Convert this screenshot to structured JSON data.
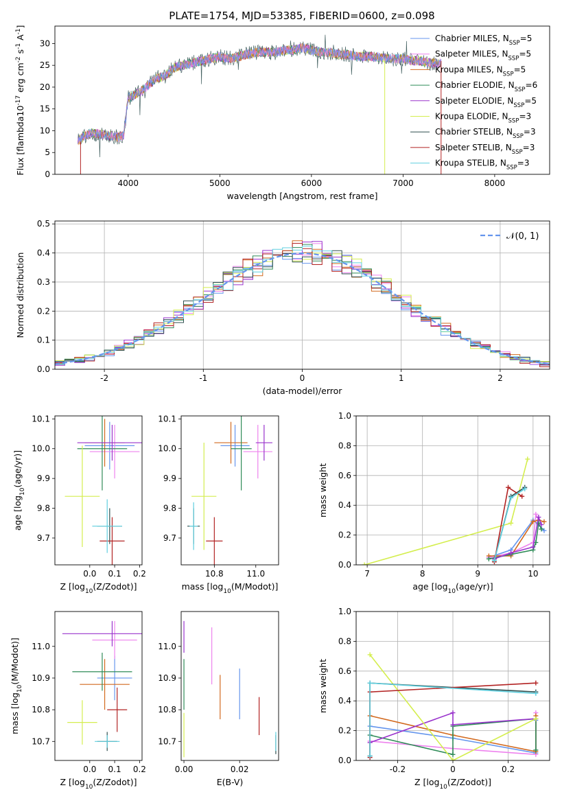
{
  "figure": {
    "title": "PLATE=1754, MJD=53385, FIBERID=0600, z=0.098"
  },
  "models": [
    {
      "name": "Chabrier MILES",
      "nssp": "5",
      "color": "#6495ed"
    },
    {
      "name": "Salpeter MILES",
      "nssp": "5",
      "color": "#ee82ee"
    },
    {
      "name": "Kroupa MILES",
      "nssp": "5",
      "color": "#d2691e"
    },
    {
      "name": "Chabrier ELODIE",
      "nssp": "6",
      "color": "#2e8b57"
    },
    {
      "name": "Salpeter ELODIE",
      "nssp": "5",
      "color": "#9932cc"
    },
    {
      "name": "Kroupa ELODIE",
      "nssp": "3",
      "color": "#d4ee4e"
    },
    {
      "name": "Chabrier STELIB",
      "nssp": "3",
      "color": "#2f4f4f"
    },
    {
      "name": "Salpeter STELIB",
      "nssp": "3",
      "color": "#b22222"
    },
    {
      "name": "Kroupa STELIB",
      "nssp": "3",
      "color": "#5fcfdf"
    }
  ],
  "chart_data": [
    {
      "id": "spectrum",
      "type": "line",
      "xlabel": "wavelength [Angstrom, rest frame]",
      "ylabel": "Flux [f$_\\lambda$10$^{-17}$ erg cm$^{-2}$ s$^{-1}$ A$^{-1}$]",
      "xlim": [
        3200,
        8600
      ],
      "ylim": [
        0,
        34
      ],
      "xticks": [
        4000,
        5000,
        6000,
        7000,
        8000
      ],
      "yticks": [
        0,
        5,
        10,
        15,
        20,
        25,
        30
      ],
      "grid": false,
      "legend": "right",
      "continuum": {
        "x": [
          3450,
          3500,
          3600,
          3700,
          3800,
          3900,
          3950,
          4000,
          4100,
          4200,
          4300,
          4400,
          4500,
          4600,
          4700,
          4800,
          4900,
          5000,
          5100,
          5200,
          5300,
          5400,
          5500,
          5600,
          5700,
          5800,
          5900,
          6000,
          6100,
          6200,
          6300,
          6400,
          6500,
          6600,
          6700,
          6800,
          6900,
          7000,
          7100,
          7200,
          7300,
          7400,
          7420
        ],
        "y": [
          7.5,
          8.5,
          9.5,
          9.2,
          8.8,
          8.5,
          9.0,
          17.5,
          18.5,
          20.0,
          22.0,
          22.5,
          24.5,
          25.0,
          25.5,
          26.0,
          26.5,
          27.0,
          26.5,
          27.0,
          27.5,
          28.0,
          28.0,
          28.0,
          28.5,
          28.5,
          29.0,
          28.5,
          28.0,
          28.0,
          27.5,
          27.5,
          27.0,
          27.0,
          27.0,
          26.5,
          26.5,
          26.5,
          26.0,
          26.0,
          25.5,
          25.5,
          25.5
        ]
      }
    },
    {
      "id": "residuals",
      "type": "line",
      "xlabel": "(data-model)/error",
      "ylabel": "Normed distribution",
      "xlim": [
        -2.5,
        2.5
      ],
      "ylim": [
        0,
        0.51
      ],
      "xticks": [
        -2,
        -1,
        0,
        1,
        2
      ],
      "yticks": [
        0.0,
        0.1,
        0.2,
        0.3,
        0.4,
        0.5
      ],
      "grid": true,
      "legend": "top-right",
      "legend_label": "$\\mathcal{N}(0, 1)$"
    },
    {
      "id": "age-vs-z",
      "type": "scatter",
      "xlabel": "Z [log$_{10}$($Z/Z_\\odot$)]",
      "ylabel": "age  [log$_{10}$($age/yr$)]",
      "xlim": [
        -0.14,
        0.21
      ],
      "ylim": [
        9.61,
        10.11
      ],
      "xticks": [
        0.0,
        0.1,
        0.2
      ],
      "yticks": [
        9.7,
        9.8,
        9.9,
        10.0,
        10.1
      ],
      "points": [
        {
          "m": 0,
          "x": 0.08,
          "y": 10.01,
          "xerr": 0.1,
          "yerr": 0.08
        },
        {
          "m": 1,
          "x": 0.1,
          "y": 9.99,
          "xerr": 0.1,
          "yerr": 0.09
        },
        {
          "m": 2,
          "x": 0.06,
          "y": 10.02,
          "xerr": 0.08,
          "yerr": 0.08
        },
        {
          "m": 3,
          "x": 0.05,
          "y": 10.0,
          "xerr": 0.1,
          "yerr": 0.14
        },
        {
          "m": 4,
          "x": 0.09,
          "y": 10.02,
          "xerr": 0.14,
          "yerr": 0.06
        },
        {
          "m": 5,
          "x": -0.03,
          "y": 9.84,
          "xerr": 0.07,
          "yerr": 0.17
        },
        {
          "m": 6,
          "x": 0.08,
          "y": 9.74,
          "xerr": 0.05,
          "yerr": 0.06
        },
        {
          "m": 7,
          "x": 0.09,
          "y": 9.69,
          "xerr": 0.05,
          "yerr": 0.08
        },
        {
          "m": 8,
          "x": 0.07,
          "y": 9.74,
          "xerr": 0.06,
          "yerr": 0.09
        }
      ]
    },
    {
      "id": "age-vs-mass",
      "type": "scatter",
      "xlabel": "mass [log$_{10}$($M/M_\\odot$)]",
      "ylabel": "",
      "xlim": [
        10.64,
        11.11
      ],
      "ylim": [
        9.61,
        10.11
      ],
      "xticks": [
        10.8,
        11.0
      ],
      "yticks": [
        9.7,
        9.8,
        9.9,
        10.0,
        10.1
      ],
      "points": [
        {
          "m": 0,
          "x": 10.9,
          "y": 10.01,
          "xerr": 0.07,
          "yerr": 0.07
        },
        {
          "m": 1,
          "x": 11.01,
          "y": 9.99,
          "xerr": 0.07,
          "yerr": 0.09
        },
        {
          "m": 2,
          "x": 10.88,
          "y": 10.02,
          "xerr": 0.08,
          "yerr": 0.07
        },
        {
          "m": 3,
          "x": 10.93,
          "y": 10.0,
          "xerr": 0.05,
          "yerr": 0.14
        },
        {
          "m": 4,
          "x": 11.04,
          "y": 10.02,
          "xerr": 0.04,
          "yerr": 0.06
        },
        {
          "m": 5,
          "x": 10.75,
          "y": 9.84,
          "xerr": 0.06,
          "yerr": 0.18
        },
        {
          "m": 6,
          "x": 10.7,
          "y": 9.74,
          "xerr": 0.03,
          "yerr": 0.06
        },
        {
          "m": 7,
          "x": 10.8,
          "y": 9.69,
          "xerr": 0.04,
          "yerr": 0.08
        },
        {
          "m": 8,
          "x": 10.7,
          "y": 9.74,
          "xerr": 0.02,
          "yerr": 0.08
        }
      ]
    },
    {
      "id": "mass-weight-vs-age",
      "type": "line",
      "xlabel": "age  [log$_{10}$($age/yr$)]",
      "ylabel": "mass weight",
      "xlim": [
        6.8,
        10.3
      ],
      "ylim": [
        0,
        1.0
      ],
      "xticks": [
        7,
        8,
        9,
        10
      ],
      "yticks": [
        0.0,
        0.2,
        0.4,
        0.6,
        0.8,
        1.0
      ],
      "grid": true,
      "series": [
        {
          "m": 0,
          "x": [
            9.2,
            9.6,
            10.0,
            10.1,
            10.2
          ],
          "y": [
            0.05,
            0.1,
            0.3,
            0.27,
            0.23
          ]
        },
        {
          "m": 1,
          "x": [
            9.2,
            9.6,
            10.0,
            10.05,
            10.1
          ],
          "y": [
            0.05,
            0.08,
            0.15,
            0.34,
            0.3
          ]
        },
        {
          "m": 2,
          "x": [
            9.2,
            9.6,
            10.0,
            10.1,
            10.2
          ],
          "y": [
            0.06,
            0.06,
            0.29,
            0.3,
            0.29
          ]
        },
        {
          "m": 3,
          "x": [
            9.2,
            9.6,
            10.0,
            10.05,
            10.1,
            10.15
          ],
          "y": [
            0.04,
            0.07,
            0.1,
            0.15,
            0.28,
            0.24
          ]
        },
        {
          "m": 4,
          "x": [
            9.3,
            9.6,
            10.0,
            10.1,
            10.15
          ],
          "y": [
            0.04,
            0.08,
            0.12,
            0.32,
            0.27
          ]
        },
        {
          "m": 5,
          "x": [
            6.95,
            9.6,
            9.9
          ],
          "y": [
            0.0,
            0.28,
            0.71
          ]
        },
        {
          "m": 6,
          "x": [
            9.3,
            9.6,
            9.85
          ],
          "y": [
            0.03,
            0.46,
            0.52
          ]
        },
        {
          "m": 7,
          "x": [
            9.3,
            9.55,
            9.8
          ],
          "y": [
            0.02,
            0.52,
            0.46
          ]
        },
        {
          "m": 8,
          "x": [
            9.3,
            9.6,
            9.85
          ],
          "y": [
            0.03,
            0.45,
            0.51
          ]
        }
      ]
    },
    {
      "id": "mass-vs-z",
      "type": "scatter",
      "xlabel": "Z [log$_{10}$($Z/Z_\\odot$)]",
      "ylabel": "mass [log$_{10}$($M/M_\\odot$)]",
      "xlim": [
        -0.14,
        0.21
      ],
      "ylim": [
        10.64,
        11.11
      ],
      "xticks": [
        0.0,
        0.1,
        0.2
      ],
      "yticks": [
        10.7,
        10.8,
        10.9,
        11.0
      ],
      "points": [
        {
          "m": 0,
          "x": 0.1,
          "y": 10.9,
          "xerr": 0.07,
          "yerr": 0.07
        },
        {
          "m": 1,
          "x": 0.1,
          "y": 11.02,
          "xerr": 0.09,
          "yerr": 0.06
        },
        {
          "m": 2,
          "x": 0.06,
          "y": 10.88,
          "xerr": 0.1,
          "yerr": 0.08
        },
        {
          "m": 3,
          "x": 0.05,
          "y": 10.92,
          "xerr": 0.12,
          "yerr": 0.06
        },
        {
          "m": 4,
          "x": 0.09,
          "y": 11.04,
          "xerr": 0.2,
          "yerr": 0.04
        },
        {
          "m": 5,
          "x": -0.03,
          "y": 10.76,
          "xerr": 0.06,
          "yerr": 0.07
        },
        {
          "m": 6,
          "x": 0.07,
          "y": 10.7,
          "xerr": 0.04,
          "yerr": 0.03
        },
        {
          "m": 7,
          "x": 0.11,
          "y": 10.8,
          "xerr": 0.04,
          "yerr": 0.07
        },
        {
          "m": 8,
          "x": 0.07,
          "y": 10.7,
          "xerr": 0.05,
          "yerr": 0.02
        }
      ]
    },
    {
      "id": "mass-vs-ebv",
      "type": "scatter",
      "xlabel": "E(B-V)",
      "ylabel": "",
      "xlim": [
        -0.001,
        0.034
      ],
      "ylim": [
        10.64,
        11.11
      ],
      "xticks": [
        0.0,
        0.02
      ],
      "yticks": [
        10.7,
        10.8,
        10.9,
        11.0
      ],
      "points": [
        {
          "m": 0,
          "x": 0.02,
          "y": 10.85,
          "xerr": 0,
          "yerr": 0.08
        },
        {
          "m": 1,
          "x": 0.01,
          "y": 10.97,
          "xerr": 0,
          "yerr": 0.09
        },
        {
          "m": 2,
          "x": 0.013,
          "y": 10.84,
          "xerr": 0,
          "yerr": 0.07
        },
        {
          "m": 3,
          "x": 0.0,
          "y": 10.88,
          "xerr": 0,
          "yerr": 0.08
        },
        {
          "m": 4,
          "x": 0.0,
          "y": 11.03,
          "xerr": 0,
          "yerr": 0.05
        },
        {
          "m": 5,
          "x": 0.0,
          "y": 10.72,
          "xerr": 0,
          "yerr": 0.07
        },
        {
          "m": 6,
          "x": 0.033,
          "y": 10.69,
          "xerr": 0,
          "yerr": 0.03
        },
        {
          "m": 7,
          "x": 0.027,
          "y": 10.78,
          "xerr": 0,
          "yerr": 0.06
        },
        {
          "m": 8,
          "x": 0.033,
          "y": 10.7,
          "xerr": 0,
          "yerr": 0.03
        }
      ]
    },
    {
      "id": "mass-weight-vs-z",
      "type": "line",
      "xlabel": "Z [log$_{10}$($Z/Z_\\odot$)]",
      "ylabel": "mass weight",
      "xlim": [
        -0.35,
        0.35
      ],
      "ylim": [
        0,
        1.0
      ],
      "xticks": [
        -0.2,
        0.0,
        0.2
      ],
      "yticks": [
        0.0,
        0.2,
        0.4,
        0.6,
        0.8,
        1.0
      ],
      "grid": true,
      "series": [
        {
          "m": 0,
          "x": [
            -0.3,
            0.0,
            0.3,
            0.3
          ],
          "y": [
            0.23,
            0.15,
            0.05,
            0.27
          ]
        },
        {
          "m": 1,
          "x": [
            -0.3,
            0.0,
            0.3,
            0.3
          ],
          "y": [
            0.13,
            0.08,
            0.04,
            0.32
          ]
        },
        {
          "m": 2,
          "x": [
            -0.3,
            0.0,
            0.3,
            0.3
          ],
          "y": [
            0.3,
            0.17,
            0.06,
            0.3
          ]
        },
        {
          "m": 3,
          "x": [
            -0.3,
            0.0,
            0.0,
            0.3,
            0.3
          ],
          "y": [
            0.17,
            0.04,
            0.23,
            0.28,
            0.07
          ]
        },
        {
          "m": 4,
          "x": [
            -0.3,
            0.0,
            0.0,
            0.3
          ],
          "y": [
            0.12,
            0.32,
            0.24,
            0.28
          ]
        },
        {
          "m": 5,
          "x": [
            -0.3,
            0.0,
            0.3
          ],
          "y": [
            0.71,
            0.0,
            0.28
          ]
        },
        {
          "m": 6,
          "x": [
            -0.3,
            -0.3,
            0.3
          ],
          "y": [
            0.03,
            0.52,
            0.46
          ]
        },
        {
          "m": 7,
          "x": [
            -0.3,
            -0.3,
            0.3
          ],
          "y": [
            0.02,
            0.46,
            0.52
          ]
        },
        {
          "m": 8,
          "x": [
            -0.3,
            -0.3,
            0.3
          ],
          "y": [
            0.03,
            0.52,
            0.45
          ]
        }
      ]
    }
  ]
}
